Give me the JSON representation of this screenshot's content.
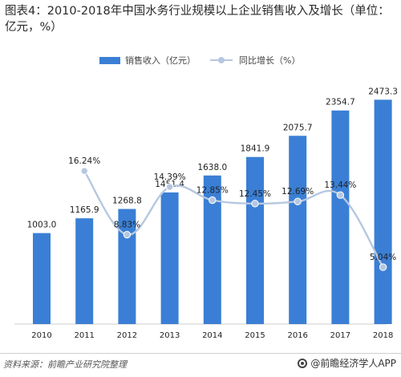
{
  "title": "图表4：2010-2018年中国水务行业规模以上企业销售收入及增长（单位：亿元，%）",
  "legend": {
    "bar_label": "销售收入（亿元）",
    "line_label": "同比增长（%）"
  },
  "source": "资料来源：前瞻产业研究院整理",
  "brand": "@前瞻经济学人APP",
  "colors": {
    "bar": "#3a7fd5",
    "line": "#b6c7e0"
  },
  "chart_data": {
    "type": "bar",
    "categories": [
      "2010",
      "2011",
      "2012",
      "2013",
      "2014",
      "2015",
      "2016",
      "2017",
      "2018"
    ],
    "series": [
      {
        "name": "销售收入（亿元）",
        "type": "bar",
        "values": [
          1003.0,
          1165.9,
          1268.8,
          1451.4,
          1638.0,
          1841.9,
          2075.7,
          2354.7,
          2473.3
        ],
        "labels": [
          "1003.0",
          "1165.9",
          "1268.8",
          "1451.4",
          "1638.0",
          "1841.9",
          "2075.7",
          "2354.7",
          "2473.3"
        ]
      },
      {
        "name": "同比增长（%）",
        "type": "line",
        "values": [
          null,
          16.24,
          8.83,
          14.39,
          12.85,
          12.45,
          12.69,
          13.44,
          5.04
        ],
        "labels": [
          "",
          "16.24%",
          "8.83%",
          "14.39%",
          "12.85%",
          "12.45%",
          "12.69%",
          "13.44%",
          "5.04%"
        ]
      }
    ],
    "ylim_bar": [
      0,
      2600
    ],
    "ylim_line": [
      0,
      18
    ],
    "legend_position": "top-center",
    "grid": false
  }
}
